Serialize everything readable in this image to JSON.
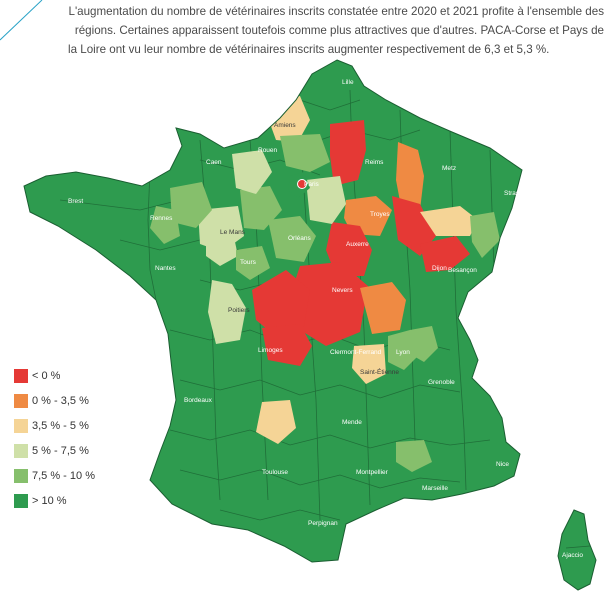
{
  "intro_text": "L'augmentation du nombre de vétérinaires inscrits constatée entre 2020 et 2021 profite à l'ensemble des régions. Certaines apparaissent toutefois comme plus attractives que d'autres. PACA-Corse et Pays de la Loire ont vu leur nombre de vétérinaires inscrits augmenter respectivement de 6,3 et 5,3 %.",
  "legend": [
    {
      "label": "< 0 %",
      "color": "#e53935"
    },
    {
      "label": "0 % - 3,5 %",
      "color": "#ef8a43"
    },
    {
      "label": "3,5 % - 5 %",
      "color": "#f5d496"
    },
    {
      "label": "5 % - 7,5 %",
      "color": "#cfe0a8"
    },
    {
      "label": "7,5 % - 10 %",
      "color": "#86bf6c"
    },
    {
      "label": "> 10 %",
      "color": "#2e9b4f"
    }
  ],
  "cities": [
    {
      "name": "Lille",
      "category": "> 10 %"
    },
    {
      "name": "Amiens",
      "category": "3,5 % - 5 %"
    },
    {
      "name": "Rouen",
      "category": "> 10 %"
    },
    {
      "name": "Caen",
      "category": "> 10 %"
    },
    {
      "name": "Brest",
      "category": "> 10 %"
    },
    {
      "name": "Rennes",
      "category": "> 10 %"
    },
    {
      "name": "Le Mans",
      "category": "5 % - 7,5 %"
    },
    {
      "name": "Paris",
      "category": "< 0 %"
    },
    {
      "name": "Reims",
      "category": "< 0 %"
    },
    {
      "name": "Metz",
      "category": "> 10 %"
    },
    {
      "name": "Strasbourg",
      "category": "> 10 %"
    },
    {
      "name": "Troyes",
      "category": "0 % - 3,5 %"
    },
    {
      "name": "Orléans",
      "category": "> 10 %"
    },
    {
      "name": "Nantes",
      "category": "> 10 %"
    },
    {
      "name": "Tours",
      "category": "> 10 %"
    },
    {
      "name": "Auxerre",
      "category": "< 0 %"
    },
    {
      "name": "Dijon",
      "category": "< 0 %"
    },
    {
      "name": "Besançon",
      "category": "< 0 %"
    },
    {
      "name": "Nevers",
      "category": "< 0 %"
    },
    {
      "name": "Poitiers",
      "category": "5 % - 7,5 %"
    },
    {
      "name": "Limoges",
      "category": "< 0 %"
    },
    {
      "name": "Clermont-Ferrand",
      "category": "> 10 %"
    },
    {
      "name": "Lyon",
      "category": "7,5 % - 10 %"
    },
    {
      "name": "Saint-Étienne",
      "category": "3,5 % - 5 %"
    },
    {
      "name": "Grenoble",
      "category": "> 10 %"
    },
    {
      "name": "Bordeaux",
      "category": "> 10 %"
    },
    {
      "name": "Mende",
      "category": "> 10 %"
    },
    {
      "name": "Toulouse",
      "category": "> 10 %"
    },
    {
      "name": "Montpellier",
      "category": "> 10 %"
    },
    {
      "name": "Marseille",
      "category": "> 10 %"
    },
    {
      "name": "Nice",
      "category": "> 10 %"
    },
    {
      "name": "Perpignan",
      "category": "> 10 %"
    },
    {
      "name": "Ajaccio",
      "category": "> 10 %"
    }
  ]
}
